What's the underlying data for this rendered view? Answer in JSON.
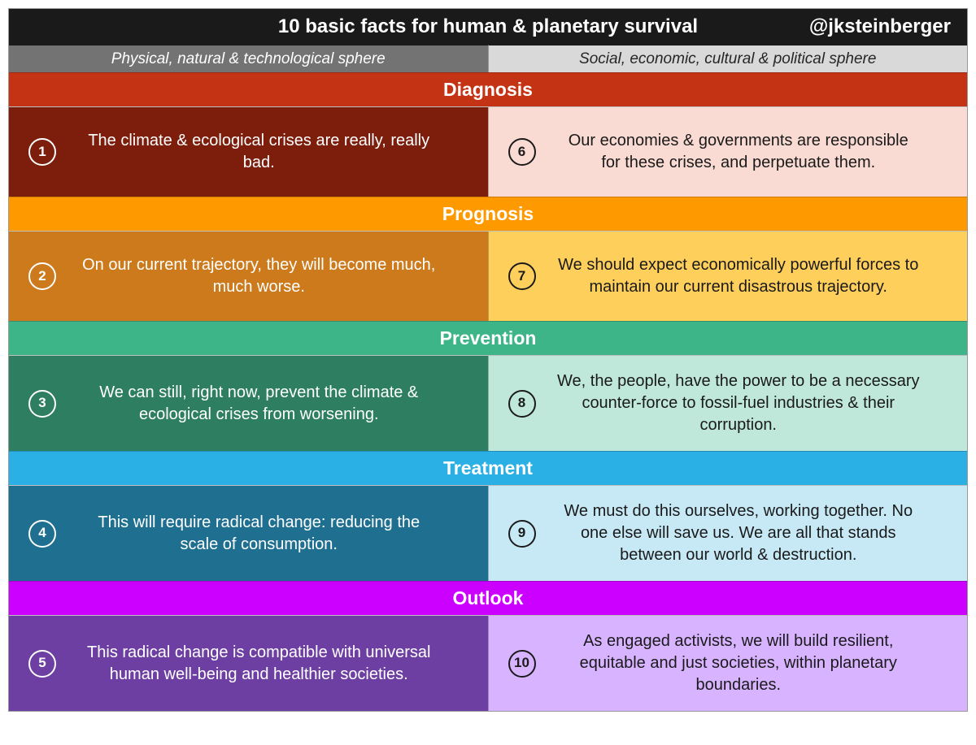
{
  "title": "10 basic facts for human & planetary survival",
  "handle": "@jksteinberger",
  "colors": {
    "title_bg": "#1a1a1a",
    "sphere_left_bg": "#737373",
    "sphere_left_fg": "#ffffff",
    "sphere_right_bg": "#d9d9d9",
    "sphere_right_fg": "#262626"
  },
  "spheres": {
    "left": "Physical, natural & technological sphere",
    "right": "Social, economic, cultural & political sphere"
  },
  "sections": [
    {
      "label": "Diagnosis",
      "header_bg": "#c43414",
      "left": {
        "num": "1",
        "text": "The climate & ecological crises are really, really bad.",
        "bg": "#7d1d0c"
      },
      "right": {
        "num": "6",
        "text": "Our economies & governments are responsible for these crises, and perpetuate them.",
        "bg": "#fadbd3"
      }
    },
    {
      "label": "Prognosis",
      "header_bg": "#ff9900",
      "left": {
        "num": "2",
        "text": "On our current trajectory, they will become much, much worse.",
        "bg": "#cc7a1b"
      },
      "right": {
        "num": "7",
        "text": "We should expect economically powerful forces to maintain our current disastrous trajectory.",
        "bg": "#ffcf5c"
      }
    },
    {
      "label": "Prevention",
      "header_bg": "#3eb489",
      "left": {
        "num": "3",
        "text": "We can still, right now, prevent the climate & ecological crises from worsening.",
        "bg": "#2e7f62"
      },
      "right": {
        "num": "8",
        "text": "We, the people, have the power to be a necessary counter-force to fossil-fuel industries & their corruption.",
        "bg": "#bfe8db"
      }
    },
    {
      "label": "Treatment",
      "header_bg": "#2bb0e6",
      "left": {
        "num": "4",
        "text": "This will require radical change: reducing the scale of consumption.",
        "bg": "#1f6f91"
      },
      "right": {
        "num": "9",
        "text": "We must do this ourselves, working together. No one else will save us. We are all that stands between our world & destruction.",
        "bg": "#c7e9f6"
      }
    },
    {
      "label": "Outlook",
      "header_bg": "#cc00ff",
      "left": {
        "num": "5",
        "text": "This radical change is compatible with universal human well-being and healthier societies.",
        "bg": "#6d3fa3"
      },
      "right": {
        "num": "10",
        "text": "As engaged activists, we will build resilient, equitable and just societies, within planetary boundaries.",
        "bg": "#d8b3ff"
      }
    }
  ]
}
